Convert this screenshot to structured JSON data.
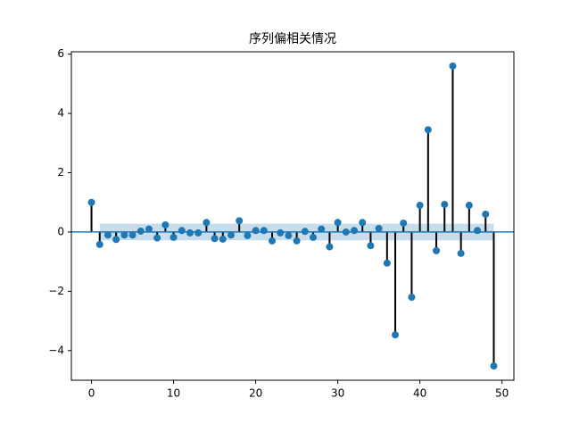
{
  "chart_data": {
    "type": "stem",
    "title": "序列偏相关情况",
    "x": [
      0,
      1,
      2,
      3,
      4,
      5,
      6,
      7,
      8,
      9,
      10,
      11,
      12,
      13,
      14,
      15,
      16,
      17,
      18,
      19,
      20,
      21,
      22,
      23,
      24,
      25,
      26,
      27,
      28,
      29,
      30,
      31,
      32,
      33,
      34,
      35,
      36,
      37,
      38,
      39,
      40,
      41,
      42,
      43,
      44,
      45,
      46,
      47,
      48,
      49
    ],
    "values": [
      1.0,
      -0.42,
      -0.1,
      -0.25,
      -0.1,
      -0.1,
      0.03,
      0.1,
      -0.2,
      0.24,
      -0.18,
      0.05,
      -0.03,
      -0.03,
      0.32,
      -0.22,
      -0.24,
      -0.1,
      0.38,
      -0.12,
      0.05,
      0.05,
      -0.3,
      -0.03,
      -0.12,
      -0.3,
      0.02,
      -0.18,
      0.1,
      -0.5,
      0.32,
      0.0,
      0.05,
      0.32,
      -0.46,
      0.12,
      -1.05,
      -3.47,
      0.3,
      -2.2,
      0.9,
      3.45,
      -0.63,
      0.93,
      5.6,
      -0.72,
      0.9,
      0.05,
      0.6,
      -4.52
    ],
    "color": "#1f77b4",
    "stem_color": "#000000",
    "confidence_band": {
      "from": 1,
      "to": 49,
      "lower": -0.28,
      "upper": 0.28,
      "color": "#1f77b4"
    },
    "xlim": [
      -2.45,
      51.45
    ],
    "xticks": [
      0,
      10,
      20,
      30,
      40,
      50
    ],
    "ylim": [
      -5.0,
      6.08
    ],
    "yticks": [
      {
        "value": -4,
        "label": "−4"
      },
      {
        "value": -2,
        "label": "−2"
      },
      0,
      2,
      4,
      6
    ]
  }
}
